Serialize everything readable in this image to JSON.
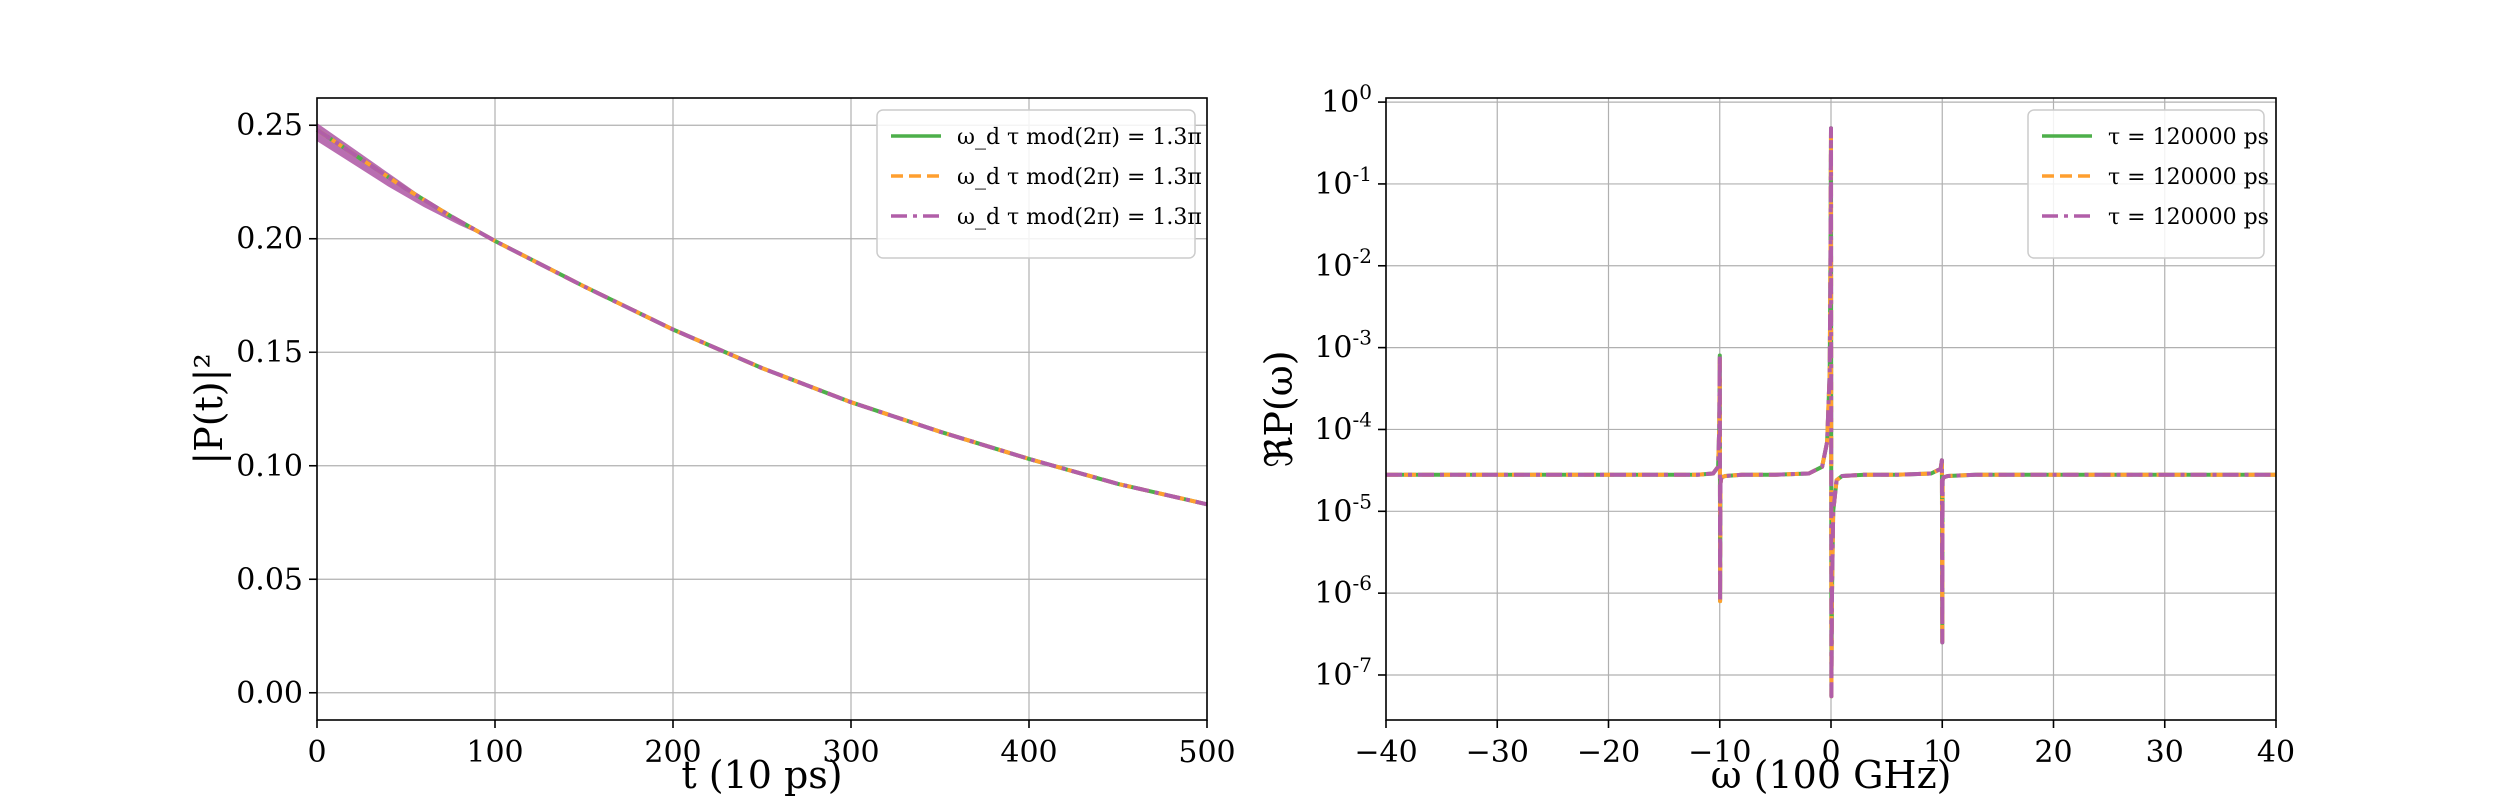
{
  "colors": {
    "green": "#4daf4a",
    "orange": "#ff9f2f",
    "purple": "#b15ea8",
    "grid": "#b0b0b0",
    "legend_border": "#cccccc"
  },
  "chart_data": [
    {
      "type": "line",
      "xlabel": "t (10 ps)",
      "ylabel": "|P(t)|²",
      "xlim": [
        0,
        500
      ],
      "ylim": [
        -0.012,
        0.262
      ],
      "xticks": [
        0,
        100,
        200,
        300,
        400,
        500
      ],
      "xtick_labels": [
        "0",
        "100",
        "200",
        "300",
        "400",
        "500"
      ],
      "yticks": [
        0.0,
        0.05,
        0.1,
        0.15,
        0.2,
        0.25
      ],
      "ytick_labels": [
        "0.00",
        "0.05",
        "0.10",
        "0.15",
        "0.20",
        "0.25"
      ],
      "grid": true,
      "legend_position": "top-right",
      "series": [
        {
          "name": "ω_d τ mod(2π) = 1.3π",
          "style": "solid",
          "color": "green",
          "x": [
            0,
            25,
            50,
            75,
            100,
            150,
            200,
            250,
            300,
            350,
            400,
            450,
            500
          ],
          "y": [
            0.248,
            0.235,
            0.222,
            0.21,
            0.199,
            0.179,
            0.16,
            0.143,
            0.128,
            0.115,
            0.103,
            0.092,
            0.083
          ]
        },
        {
          "name": "ω_d τ mod(2π) = 1.3π",
          "style": "dashed",
          "color": "orange",
          "x": [
            0,
            25,
            50,
            75,
            100,
            150,
            200,
            250,
            300,
            350,
            400,
            450,
            500
          ],
          "y": [
            0.248,
            0.235,
            0.222,
            0.21,
            0.199,
            0.179,
            0.16,
            0.143,
            0.128,
            0.115,
            0.103,
            0.092,
            0.083
          ]
        },
        {
          "name": "ω_d τ mod(2π) = 1.3π",
          "style": "dashdot",
          "color": "purple",
          "x": [
            0,
            25,
            50,
            75,
            100,
            150,
            200,
            250,
            300,
            350,
            400,
            450,
            500
          ],
          "y": [
            0.248,
            0.235,
            0.222,
            0.21,
            0.199,
            0.179,
            0.16,
            0.143,
            0.128,
            0.115,
            0.103,
            0.092,
            0.083
          ]
        }
      ],
      "band": {
        "color": "purple",
        "x": [
          0,
          20,
          40,
          60,
          80,
          100
        ],
        "upper": [
          0.251,
          0.24,
          0.229,
          0.218,
          0.208,
          0.199
        ],
        "lower": [
          0.243,
          0.233,
          0.223,
          0.214,
          0.206,
          0.199
        ]
      }
    },
    {
      "type": "line",
      "xlabel": "ω (100 GHz)",
      "ylabel": "ℜP(ω)",
      "xlim": [
        -40,
        40
      ],
      "ylim_log10": [
        -7.55,
        0.05
      ],
      "yscale": "log",
      "xticks": [
        -40,
        -30,
        -20,
        -10,
        0,
        10,
        20,
        30,
        40
      ],
      "xtick_labels": [
        "−40",
        "−30",
        "−20",
        "−10",
        "0",
        "10",
        "20",
        "30",
        "40"
      ],
      "yticks_log10": [
        0,
        -1,
        -2,
        -3,
        -4,
        -5,
        -6,
        -7
      ],
      "ytick_labels": [
        {
          "base": "10",
          "exp": "0"
        },
        {
          "base": "10",
          "exp": "-1"
        },
        {
          "base": "10",
          "exp": "-2"
        },
        {
          "base": "10",
          "exp": "-3"
        },
        {
          "base": "10",
          "exp": "-4"
        },
        {
          "base": "10",
          "exp": "-5"
        },
        {
          "base": "10",
          "exp": "-6"
        },
        {
          "base": "10",
          "exp": "-7"
        }
      ],
      "grid": true,
      "legend_position": "top-right",
      "series": [
        {
          "name": "τ = 120000 ps",
          "style": "solid",
          "color": "green"
        },
        {
          "name": "τ = 120000 ps",
          "style": "dashed",
          "color": "orange"
        },
        {
          "name": "τ = 120000 ps",
          "style": "dashdot",
          "color": "purple"
        }
      ],
      "curve": {
        "x": [
          -40,
          -30,
          -20,
          -12,
          -10.6,
          -10.15,
          -10.05,
          -10.0,
          -9.97,
          -9.93,
          -9.85,
          -9.5,
          -8,
          -5,
          -2,
          -0.8,
          -0.35,
          -0.12,
          -0.05,
          0.0,
          0.04,
          0.09,
          0.2,
          0.5,
          1.0,
          3,
          6,
          9,
          9.85,
          9.97,
          10.0,
          10.03,
          10.12,
          10.5,
          13,
          20,
          30,
          40
        ],
        "y": [
          2.8e-05,
          2.8e-05,
          2.8e-05,
          2.8e-05,
          2.9e-05,
          3.5e-05,
          0.0001,
          0.0008,
          8e-07,
          2.2e-05,
          2.6e-05,
          2.7e-05,
          2.8e-05,
          2.8e-05,
          2.9e-05,
          3.5e-05,
          7e-05,
          0.0005,
          0.01,
          0.48,
          5.5e-08,
          1e-06,
          1e-05,
          2.4e-05,
          2.7e-05,
          2.8e-05,
          2.8e-05,
          2.9e-05,
          3.3e-05,
          4.2e-05,
          2.5e-07,
          2.4e-05,
          2.6e-05,
          2.7e-05,
          2.8e-05,
          2.8e-05,
          2.8e-05,
          2.8e-05
        ]
      }
    }
  ]
}
